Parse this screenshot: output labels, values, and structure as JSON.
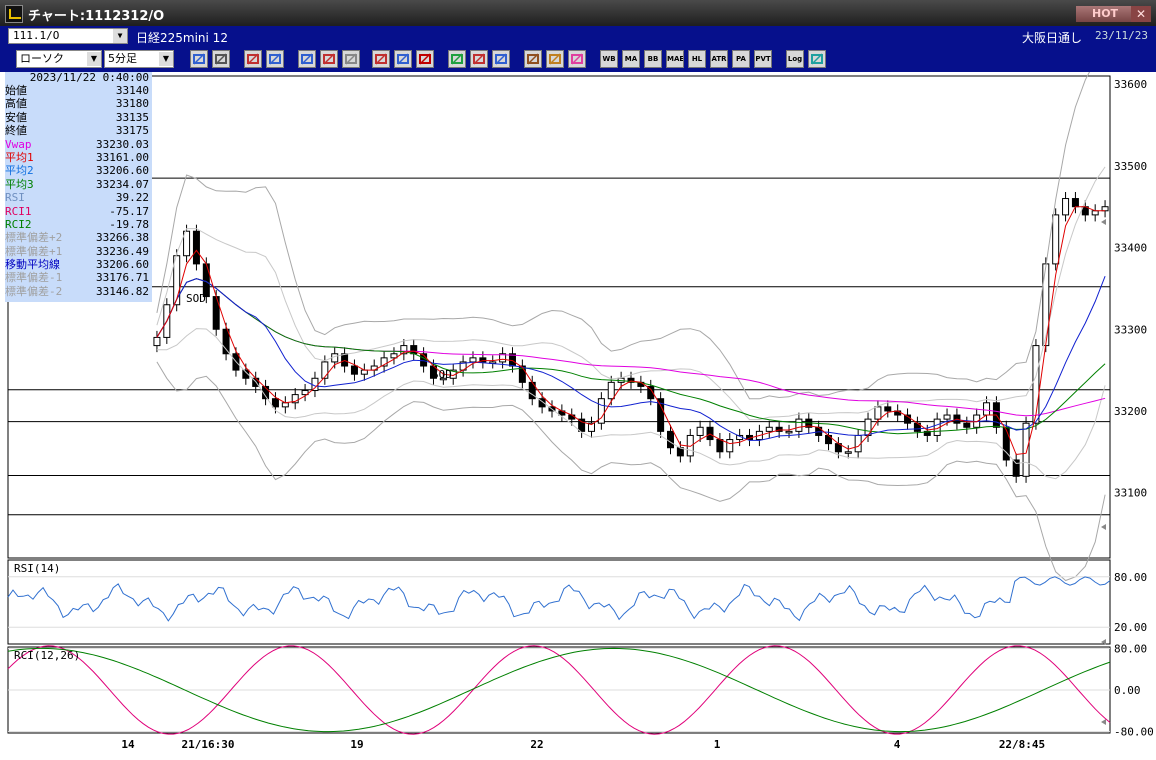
{
  "window": {
    "title": "チャート:1112312/O",
    "hot_label": "HOT",
    "close_label": "✕"
  },
  "header": {
    "symbol_code": "111.1/O",
    "symbol_name": "日経225mini 12",
    "session": "大阪日通し",
    "date": "23/11/23"
  },
  "toolbar": {
    "chart_type": "ローソク",
    "interval": "5分足",
    "buttons": [
      "zoom",
      "crosshair",
      "annotate",
      "search",
      "compare",
      "stack",
      "line",
      "buy",
      "sell",
      "all",
      "draw",
      "pointer",
      "arrow",
      "tools",
      "wrench",
      "palette",
      "WB",
      "MA",
      "BB",
      "MAE",
      "HL",
      "ATR",
      "PA",
      "PVT",
      "Log",
      "export"
    ]
  },
  "info_panel": {
    "datetime": "2023/11/22 0:40:00",
    "rows": [
      {
        "label": "始値",
        "value": "33140",
        "color": "#000000"
      },
      {
        "label": "高値",
        "value": "33180",
        "color": "#000000"
      },
      {
        "label": "安値",
        "value": "33135",
        "color": "#000000"
      },
      {
        "label": "終値",
        "value": "33175",
        "color": "#000000"
      },
      {
        "label": "Vwap",
        "value": "33230.03",
        "color": "#e000e0"
      },
      {
        "label": "平均1",
        "value": "33161.00",
        "color": "#e00000"
      },
      {
        "label": "平均2",
        "value": "33206.60",
        "color": "#1070e0"
      },
      {
        "label": "平均3",
        "value": "33234.07",
        "color": "#008000"
      },
      {
        "label": "RSI",
        "value": "39.22",
        "color": "#7090c0"
      },
      {
        "label": "RCI1",
        "value": "-75.17",
        "color": "#e00060"
      },
      {
        "label": "RCI2",
        "value": "-19.78",
        "color": "#008000"
      },
      {
        "label": "標準偏差+2",
        "value": "33266.38",
        "color": "#a0a0a0"
      },
      {
        "label": "標準偏差+1",
        "value": "33236.49",
        "color": "#a0a0a0"
      },
      {
        "label": "移動平均線",
        "value": "33206.60",
        "color": "#0000c0"
      },
      {
        "label": "標準偏差-1",
        "value": "33176.71",
        "color": "#a0a0a0"
      },
      {
        "label": "標準偏差-2",
        "value": "33146.82",
        "color": "#a0a0a0"
      }
    ]
  },
  "price_axis": {
    "labels": [
      "33600",
      "33500",
      "33400",
      "33300",
      "33200",
      "33100"
    ]
  },
  "rsi_panel": {
    "label": "RSI(14)",
    "levels": [
      "80.00",
      "20.00"
    ]
  },
  "rci_panel": {
    "label": "RCI(12,26)",
    "levels": [
      "80.00",
      "0.00",
      "-80.00"
    ]
  },
  "x_axis": {
    "labels": [
      "14",
      "21/16:30",
      "19",
      "22",
      "1",
      "4",
      "22/8:45"
    ]
  },
  "annotations": [
    "SOD",
    "SOD"
  ],
  "chart_data": {
    "type": "line",
    "price_range": [
      33020,
      33610
    ],
    "horizontal_levels": [
      33485,
      33352,
      33226,
      33187,
      33121,
      33073
    ],
    "close": [
      33290,
      33330,
      33390,
      33420,
      33380,
      33340,
      33300,
      33270,
      33250,
      33240,
      33230,
      33215,
      33205,
      33210,
      33220,
      33225,
      33240,
      33260,
      33270,
      33255,
      33245,
      33250,
      33255,
      33265,
      33270,
      33280,
      33270,
      33255,
      33240,
      33240,
      33250,
      33260,
      33265,
      33260,
      33260,
      33270,
      33255,
      33235,
      33215,
      33205,
      33200,
      33195,
      33190,
      33175,
      33185,
      33215,
      33235,
      33240,
      33235,
      33230,
      33215,
      33175,
      33155,
      33145,
      33170,
      33180,
      33165,
      33150,
      33165,
      33170,
      33165,
      33175,
      33180,
      33175,
      33175,
      33190,
      33180,
      33170,
      33160,
      33150,
      33150,
      33170,
      33190,
      33205,
      33200,
      33195,
      33185,
      33175,
      33170,
      33190,
      33195,
      33185,
      33180,
      33195,
      33210,
      33180,
      33140,
      33120,
      33185,
      33280,
      33380,
      33440,
      33460,
      33450,
      33440,
      33445,
      33450
    ]
  }
}
